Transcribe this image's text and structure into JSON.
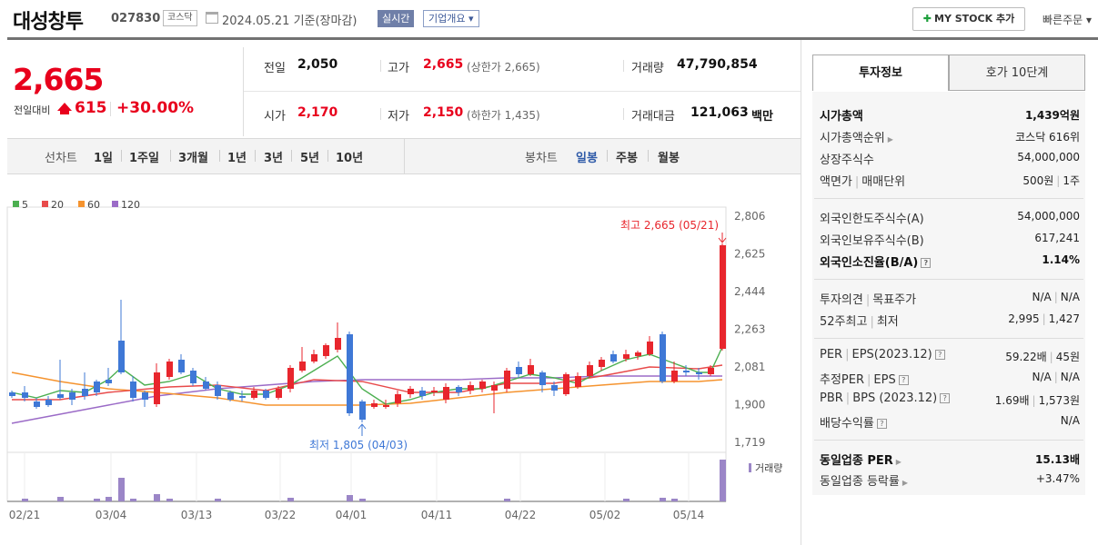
{
  "header": {
    "name": "대성창투",
    "code": "027830",
    "market": "코스닥",
    "date_text": "2024.05.21  기준(장마감)",
    "realtime": "실시간",
    "corp_info": "기업개요",
    "mystock": "MY STOCK 추가",
    "quick_order": "빠른주문"
  },
  "price": {
    "current": "2,665",
    "prev_label": "전일대비",
    "change": "615",
    "pct": "+30.00%"
  },
  "summary": {
    "prev_close_lbl": "전일",
    "prev_close": "2,050",
    "high_lbl": "고가",
    "high": "2,665",
    "high_sub": "(상한가 2,665)",
    "volume_lbl": "거래량",
    "volume": "47,790,854",
    "open_lbl": "시가",
    "open": "2,170",
    "low_lbl": "저가",
    "low": "2,150",
    "low_sub": "(하한가 1,435)",
    "amount_lbl": "거래대금",
    "amount": "121,063",
    "amount_unit": "백만"
  },
  "periods": {
    "line_label": "선차트",
    "line_items": [
      "1일",
      "1주일",
      "3개월",
      "1년",
      "3년",
      "5년",
      "10년"
    ],
    "candle_label": "봉차트",
    "candle_items": [
      "일봉",
      "주봉",
      "월봉"
    ]
  },
  "chart_data": {
    "type": "candlestick",
    "ma_legend": [
      "5",
      "20",
      "60",
      "120"
    ],
    "ma_colors": [
      "#4caf50",
      "#e84a4a",
      "#f5932e",
      "#9b6bc7"
    ],
    "y_ticks": [
      "2,806",
      "2,625",
      "2,444",
      "2,263",
      "2,081",
      "1,900",
      "1,719"
    ],
    "x_ticks": [
      "02/21",
      "03/04",
      "03/13",
      "03/22",
      "04/01",
      "04/11",
      "04/22",
      "05/02",
      "05/14"
    ],
    "high_label": "최고 2,665 (05/21)",
    "low_label": "최저 1,805 (04/03)",
    "volume_label": "거래량",
    "up_color": "#e8262d",
    "down_color": "#3f78d6"
  },
  "invest": {
    "tab1": "투자정보",
    "tab2": "호가 10단계",
    "rows": {
      "mcap_lbl": "시가총액",
      "mcap": "1,439억원",
      "rank_lbl": "시가총액순위",
      "rank": "코스닥 616위",
      "shares_lbl": "상장주식수",
      "shares": "54,000,000",
      "face_lbl": "액면가",
      "unit_lbl": "매매단위",
      "face": "500원",
      "unit": "1주",
      "fl_lbl": "외국인한도주식수(A)",
      "fl": "54,000,000",
      "fh_lbl": "외국인보유주식수(B)",
      "fh": "617,241",
      "fr_lbl": "외국인소진율(B/A)",
      "fr": "1.14%",
      "op_lbl": "투자의견",
      "tp_lbl": "목표주가",
      "op": "N/A",
      "tp": "N/A",
      "w52_lbl": "52주최고",
      "w52l_lbl": "최저",
      "w52h": "2,995",
      "w52l": "1,427",
      "per_lbl": "PER",
      "eps_lbl": "EPS(2023.12)",
      "per": "59.22배",
      "eps": "45원",
      "eper_lbl": "추정PER",
      "eeps_lbl": "EPS",
      "eper": "N/A",
      "eeps": "N/A",
      "pbr_lbl": "PBR",
      "bps_lbl": "BPS (2023.12)",
      "pbr": "1.69배",
      "bps": "1,573원",
      "div_lbl": "배당수익률",
      "div": "N/A",
      "iper_lbl": "동일업종 PER",
      "iper": "15.13배",
      "irate_lbl": "동일업종 등락률",
      "irate": "+3.47%"
    }
  }
}
